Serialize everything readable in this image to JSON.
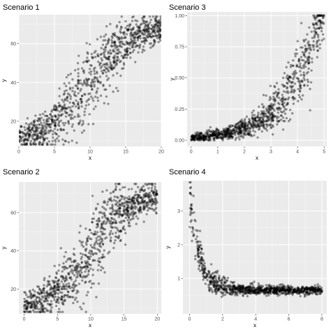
{
  "chart_data": [
    {
      "type": "scatter",
      "title": "Scenario 1",
      "xlabel": "x",
      "ylabel": "y",
      "xlim": [
        0,
        20
      ],
      "ylim": [
        7,
        75
      ],
      "xticks": [
        0,
        5,
        10,
        15,
        20
      ],
      "xtick_labels": [
        "0",
        "5",
        "10",
        "15",
        "20"
      ],
      "yticks": [
        20,
        40,
        60
      ],
      "ytick_labels": [
        "20",
        "40",
        "60"
      ],
      "x_range_points": [
        0,
        20
      ],
      "n_points": 1000,
      "relationship": "sigmoid increasing",
      "point_color": "#000000",
      "point_alpha": 0.4,
      "grid": true,
      "background": "#ebebeb"
    },
    {
      "type": "scatter",
      "title": "Scenario 3",
      "xlabel": "x",
      "ylabel": "y",
      "xlim": [
        -0.15,
        5.1
      ],
      "ylim": [
        -0.05,
        1.03
      ],
      "xticks": [
        0,
        1,
        2,
        3,
        4,
        5
      ],
      "xtick_labels": [
        "0",
        "1",
        "2",
        "3",
        "4",
        "5"
      ],
      "yticks": [
        0.0,
        0.25,
        0.5,
        0.75,
        1.0
      ],
      "ytick_labels": [
        "0.00",
        "0.25",
        "0.50",
        "0.75",
        "1.00"
      ],
      "x_range_points": [
        0,
        5
      ],
      "n_points": 1000,
      "relationship": "exponential increasing",
      "point_color": "#000000",
      "point_alpha": 0.4,
      "grid": true,
      "background": "#ebebeb"
    },
    {
      "type": "scatter",
      "title": "Scenario 2",
      "xlabel": "x",
      "ylabel": "y",
      "xlim": [
        -0.8,
        20.6
      ],
      "ylim": [
        7,
        76
      ],
      "xticks": [
        0,
        5,
        10,
        15,
        20
      ],
      "xtick_labels": [
        "0",
        "5",
        "10",
        "15",
        "20"
      ],
      "yticks": [
        20,
        40,
        60
      ],
      "ytick_labels": [
        "20",
        "40",
        "60"
      ],
      "x_range_points": [
        0,
        20
      ],
      "n_points": 1000,
      "relationship": "sigmoid increasing",
      "point_color": "#000000",
      "point_alpha": 0.4,
      "grid": true,
      "background": "#ebebeb"
    },
    {
      "type": "scatter",
      "title": "Scenario 4",
      "xlabel": "x",
      "ylabel": "y",
      "xlim": [
        -0.4,
        8.3
      ],
      "ylim": [
        -0.05,
        3.9
      ],
      "xticks": [
        0,
        2,
        4,
        6,
        8
      ],
      "xtick_labels": [
        "0",
        "2",
        "4",
        "6",
        "8"
      ],
      "yticks": [
        1,
        2,
        3
      ],
      "ytick_labels": [
        "1",
        "2",
        "3"
      ],
      "x_range_points": [
        0,
        8
      ],
      "n_points": 1000,
      "relationship": "exponential decay",
      "point_color": "#000000",
      "point_alpha": 0.4,
      "grid": true,
      "background": "#ebebeb"
    }
  ]
}
